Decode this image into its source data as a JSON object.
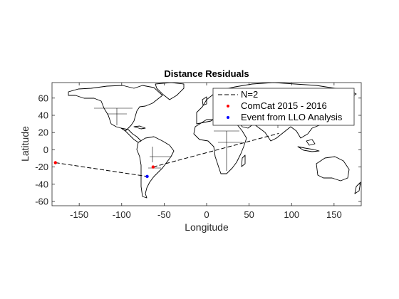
{
  "chart_data": {
    "type": "scatter",
    "title": "Distance Residuals",
    "xlabel": "Longitude",
    "ylabel": "Latitude",
    "xlim": [
      -182,
      182
    ],
    "ylim": [
      -65,
      78
    ],
    "xticks": [
      -150,
      -100,
      -50,
      0,
      50,
      100,
      150
    ],
    "yticks": [
      -60,
      -40,
      -20,
      0,
      20,
      40,
      60
    ],
    "grid": false,
    "legend_position": "top-right",
    "colors": {
      "comcat": "#ff0000",
      "llo": "#0000ff",
      "line": "#000000"
    },
    "series": [
      {
        "name": "N=2",
        "kind": "dashed-line",
        "x": [
          -178,
          -70,
          -63,
          85
        ],
        "y": [
          -15,
          -31,
          -20,
          19
        ]
      },
      {
        "name": "ComCat 2015 - 2016",
        "kind": "marker",
        "x": [
          -178,
          -63
        ],
        "y": [
          -15,
          -20
        ]
      },
      {
        "name": "Event from LLO Analysis",
        "kind": "marker",
        "x": [
          -70
        ],
        "y": [
          -31
        ]
      }
    ]
  }
}
